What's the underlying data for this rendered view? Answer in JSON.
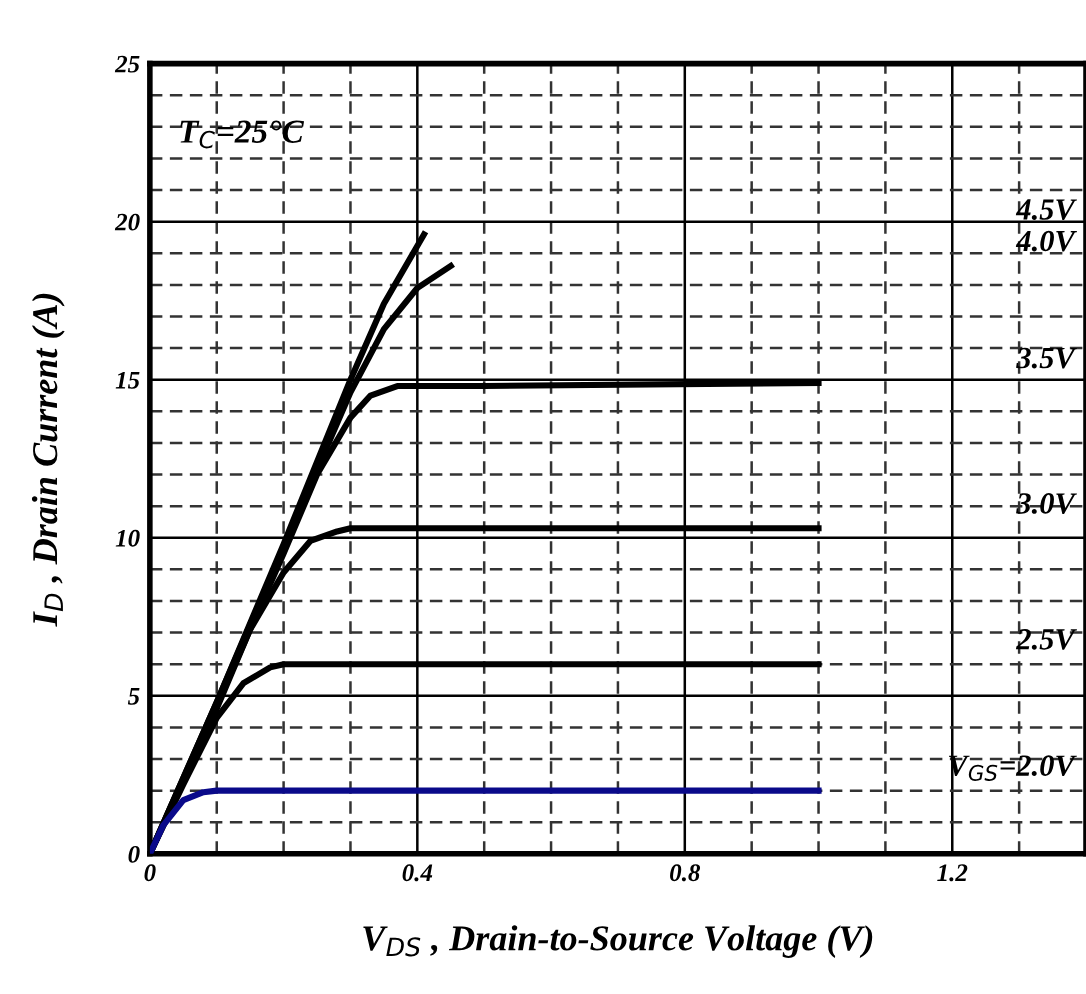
{
  "chart_data": {
    "type": "line",
    "xlabel": "V$_{DS}$ , Drain-to-Source Voltage (V)",
    "ylabel": "I$_{D}$ , Drain Current (A)",
    "annotations": [
      "T$_{C}$=25°C"
    ],
    "xlim": [
      0,
      1.4
    ],
    "ylim": [
      0,
      25
    ],
    "xticks": [
      0,
      {
        "value": 0.1,
        "label": null
      },
      {
        "value": 0.2,
        "label": null
      },
      {
        "value": 0.3,
        "label": null
      },
      0.4,
      {
        "value": 0.5,
        "label": null
      },
      {
        "value": 0.6,
        "label": null
      },
      {
        "value": 0.7,
        "label": null
      },
      0.8,
      {
        "value": 0.9,
        "label": null
      },
      {
        "value": 1.0,
        "label": null
      },
      {
        "value": 1.1,
        "label": null
      },
      1.2,
      {
        "value": 1.3,
        "label": null
      },
      {
        "value": 1.4,
        "label": null
      }
    ],
    "yticks": [
      0,
      {
        "value": 1,
        "label": null
      },
      {
        "value": 2,
        "label": null
      },
      {
        "value": 3,
        "label": null
      },
      {
        "value": 4,
        "label": null
      },
      5,
      {
        "value": 6,
        "label": null
      },
      {
        "value": 7,
        "label": null
      },
      {
        "value": 8,
        "label": null
      },
      {
        "value": 9,
        "label": null
      },
      10,
      {
        "value": 11,
        "label": null
      },
      {
        "value": 12,
        "label": null
      },
      {
        "value": 13,
        "label": null
      },
      {
        "value": 14,
        "label": null
      },
      15,
      {
        "value": 16,
        "label": null
      },
      {
        "value": 17,
        "label": null
      },
      {
        "value": 18,
        "label": null
      },
      {
        "value": 19,
        "label": null
      },
      20,
      {
        "value": 21,
        "label": null
      },
      {
        "value": 22,
        "label": null
      },
      {
        "value": 23,
        "label": null
      },
      {
        "value": 24,
        "label": null
      },
      25
    ],
    "grid": true,
    "marker": "none",
    "line_style": "solid",
    "series": [
      {
        "name": "4.5V",
        "color": "#000000",
        "x": [
          0,
          0.1,
          0.2,
          0.3,
          0.35,
          0.41
        ],
        "values": [
          0,
          4.8,
          9.8,
          15.0,
          17.4,
          19.6
        ]
      },
      {
        "name": "4.0V",
        "color": "#000000",
        "x": [
          0,
          0.1,
          0.2,
          0.3,
          0.35,
          0.4,
          0.45
        ],
        "values": [
          0,
          4.8,
          9.7,
          14.6,
          16.6,
          17.9,
          18.6
        ]
      },
      {
        "name": "3.5V",
        "color": "#000000",
        "x": [
          0,
          0.1,
          0.2,
          0.25,
          0.3,
          0.33,
          0.37,
          0.5,
          1.0
        ],
        "values": [
          0,
          4.7,
          9.5,
          12.0,
          13.8,
          14.5,
          14.8,
          14.8,
          14.9
        ]
      },
      {
        "name": "3.0V",
        "color": "#000000",
        "x": [
          0,
          0.1,
          0.15,
          0.2,
          0.24,
          0.28,
          0.3,
          1.0
        ],
        "values": [
          0,
          4.6,
          7.1,
          8.9,
          9.9,
          10.2,
          10.3,
          10.3
        ]
      },
      {
        "name": "2.5V",
        "color": "#000000",
        "x": [
          0,
          0.05,
          0.1,
          0.14,
          0.18,
          0.2,
          1.0
        ],
        "values": [
          0,
          2.2,
          4.3,
          5.4,
          5.9,
          6.0,
          6.0
        ]
      },
      {
        "name": "V$_{GS}$=2.0V",
        "color": "#0a0a8a",
        "x": [
          0,
          0.02,
          0.05,
          0.08,
          0.1,
          1.0
        ],
        "values": [
          0,
          0.9,
          1.7,
          1.95,
          2.0,
          2.0
        ]
      }
    ]
  }
}
